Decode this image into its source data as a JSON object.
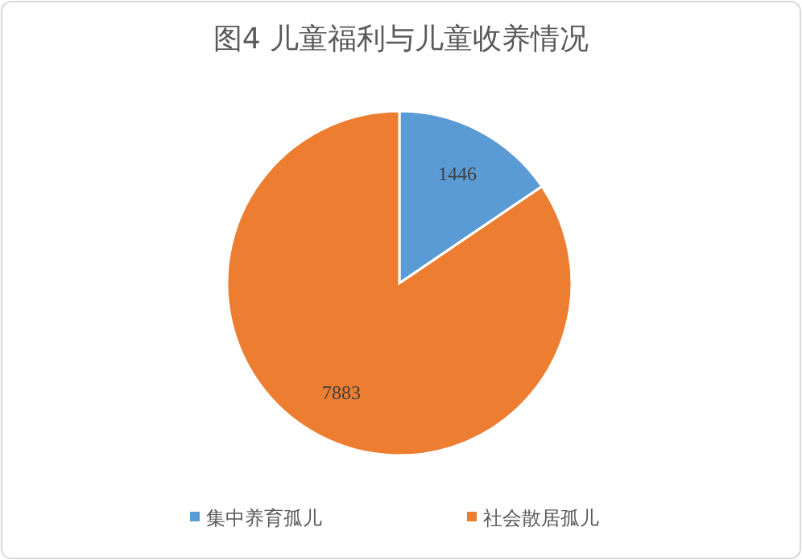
{
  "chart_data": {
    "type": "pie",
    "title": "图4  儿童福利与儿童收养情况",
    "categories": [
      "集中养育孤儿",
      "社会散居孤儿"
    ],
    "values": [
      1446,
      7883
    ],
    "colors": [
      "#5b9bd5",
      "#ed7d31"
    ],
    "data_labels": true,
    "legend": "bottom"
  }
}
